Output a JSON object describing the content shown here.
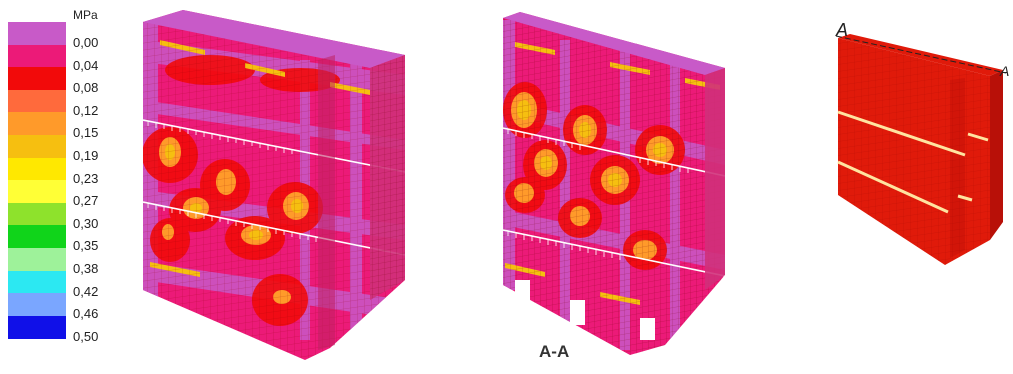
{
  "legend": {
    "unit": "MPa",
    "entries": [
      {
        "label": "0,00",
        "color": "#c85ac8"
      },
      {
        "label": "0,04",
        "color": "#ec1a78"
      },
      {
        "label": "0,08",
        "color": "#f20a0a"
      },
      {
        "label": "0,12",
        "color": "#ff6a3c"
      },
      {
        "label": "0,15",
        "color": "#ff9a2a"
      },
      {
        "label": "0,19",
        "color": "#f6bf10"
      },
      {
        "label": "0,23",
        "color": "#ffe800"
      },
      {
        "label": "0,27",
        "color": "#ffff36"
      },
      {
        "label": "0,30",
        "color": "#8ee22c"
      },
      {
        "label": "0,35",
        "color": "#10d41a"
      },
      {
        "label": "0,38",
        "color": "#9ef29a"
      },
      {
        "label": "0,42",
        "color": "#2ce8f2"
      },
      {
        "label": "0,46",
        "color": "#7aa6ff"
      },
      {
        "label": "0,50",
        "color": "#1010e8"
      }
    ]
  },
  "views": {
    "section_label": "A-A",
    "cut_marker_left": "A",
    "cut_marker_right": "A"
  }
}
